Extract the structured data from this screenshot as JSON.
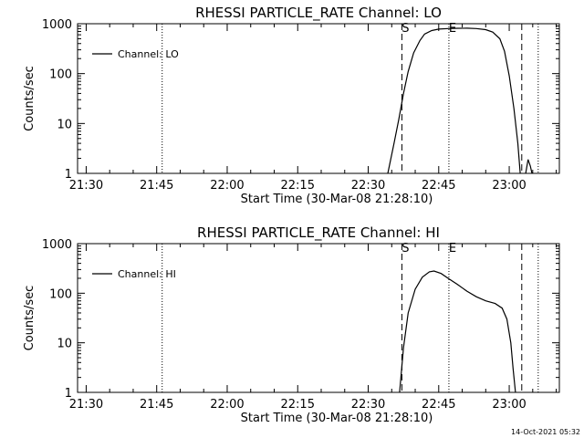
{
  "chart_data": [
    {
      "type": "line",
      "title": "RHESSI PARTICLE_RATE Channel: LO",
      "xlabel": "Start Time (30-Mar-08 21:28:10)",
      "ylabel": "Counts/sec",
      "yscale": "log",
      "ylim": [
        1,
        1000
      ],
      "xlim": [
        "21:28:10",
        "23:10:40"
      ],
      "x_tick_labels": [
        "21:30",
        "21:45",
        "22:00",
        "22:15",
        "22:30",
        "22:45",
        "23:00"
      ],
      "y_tick_labels": [
        "1",
        "10",
        "100",
        "1000"
      ],
      "legend": {
        "placement": "top-left",
        "entries": [
          "Channel: LO"
        ]
      },
      "markers": [
        {
          "label": "",
          "time": "21:46:10",
          "style": "dotted"
        },
        {
          "label": "S",
          "time": "22:37:10",
          "style": "dashed"
        },
        {
          "label": "E",
          "time": "22:47:10",
          "style": "dotted"
        },
        {
          "label": "",
          "time": "23:02:40",
          "style": "dashed"
        },
        {
          "label": "",
          "time": "23:06:10",
          "style": "dotted"
        }
      ],
      "series": [
        {
          "name": "Channel: LO",
          "segments": [
            [
              [
                "22:34:10",
                1
              ],
              [
                "22:35:30",
                4
              ],
              [
                "22:36:30",
                12
              ],
              [
                "22:37:30",
                40
              ],
              [
                "22:38:30",
                110
              ],
              [
                "22:39:40",
                260
              ],
              [
                "22:41:00",
                460
              ],
              [
                "22:42:00",
                620
              ],
              [
                "22:43:30",
                730
              ],
              [
                "22:45:00",
                780
              ],
              [
                "22:47:00",
                800
              ],
              [
                "22:49:00",
                810
              ],
              [
                "22:51:00",
                815
              ],
              [
                "22:53:00",
                800
              ],
              [
                "22:55:00",
                760
              ],
              [
                "22:56:30",
                680
              ],
              [
                "22:58:00",
                500
              ],
              [
                "22:59:00",
                280
              ],
              [
                "23:00:00",
                90
              ],
              [
                "23:01:00",
                20
              ],
              [
                "23:01:50",
                4
              ],
              [
                "23:02:20",
                1
              ]
            ],
            [
              [
                "23:03:30",
                1
              ],
              [
                "23:04:00",
                1.9
              ],
              [
                "23:04:30",
                1.4
              ],
              [
                "23:04:50",
                1
              ]
            ]
          ]
        }
      ]
    },
    {
      "type": "line",
      "title": "RHESSI PARTICLE_RATE Channel: HI",
      "xlabel": "Start Time (30-Mar-08 21:28:10)",
      "ylabel": "Counts/sec",
      "yscale": "log",
      "ylim": [
        1,
        1000
      ],
      "xlim": [
        "21:28:10",
        "23:10:40"
      ],
      "x_tick_labels": [
        "21:30",
        "21:45",
        "22:00",
        "22:15",
        "22:30",
        "22:45",
        "23:00"
      ],
      "y_tick_labels": [
        "1",
        "10",
        "100",
        "1000"
      ],
      "legend": {
        "placement": "top-left",
        "entries": [
          "Channel: HI"
        ]
      },
      "markers": [
        {
          "label": "",
          "time": "21:46:10",
          "style": "dotted"
        },
        {
          "label": "S",
          "time": "22:37:10",
          "style": "dashed"
        },
        {
          "label": "E",
          "time": "22:47:10",
          "style": "dotted"
        },
        {
          "label": "",
          "time": "23:02:40",
          "style": "dashed"
        },
        {
          "label": "",
          "time": "23:06:10",
          "style": "dotted"
        }
      ],
      "series": [
        {
          "name": "Channel: HI",
          "segments": [
            [
              [
                "22:36:40",
                1
              ],
              [
                "22:37:30",
                8
              ],
              [
                "22:38:30",
                40
              ],
              [
                "22:40:00",
                120
              ],
              [
                "22:41:30",
                210
              ],
              [
                "22:43:00",
                270
              ],
              [
                "22:44:00",
                280
              ],
              [
                "22:45:30",
                250
              ],
              [
                "22:47:00",
                200
              ],
              [
                "22:49:00",
                150
              ],
              [
                "22:51:00",
                110
              ],
              [
                "22:53:00",
                85
              ],
              [
                "22:55:00",
                70
              ],
              [
                "22:57:00",
                62
              ],
              [
                "22:58:30",
                50
              ],
              [
                "22:59:30",
                30
              ],
              [
                "23:00:20",
                10
              ],
              [
                "23:00:50",
                3
              ],
              [
                "23:01:20",
                1
              ]
            ]
          ]
        }
      ]
    }
  ],
  "footer": {
    "timestamp": "14-Oct-2021 05:32"
  }
}
